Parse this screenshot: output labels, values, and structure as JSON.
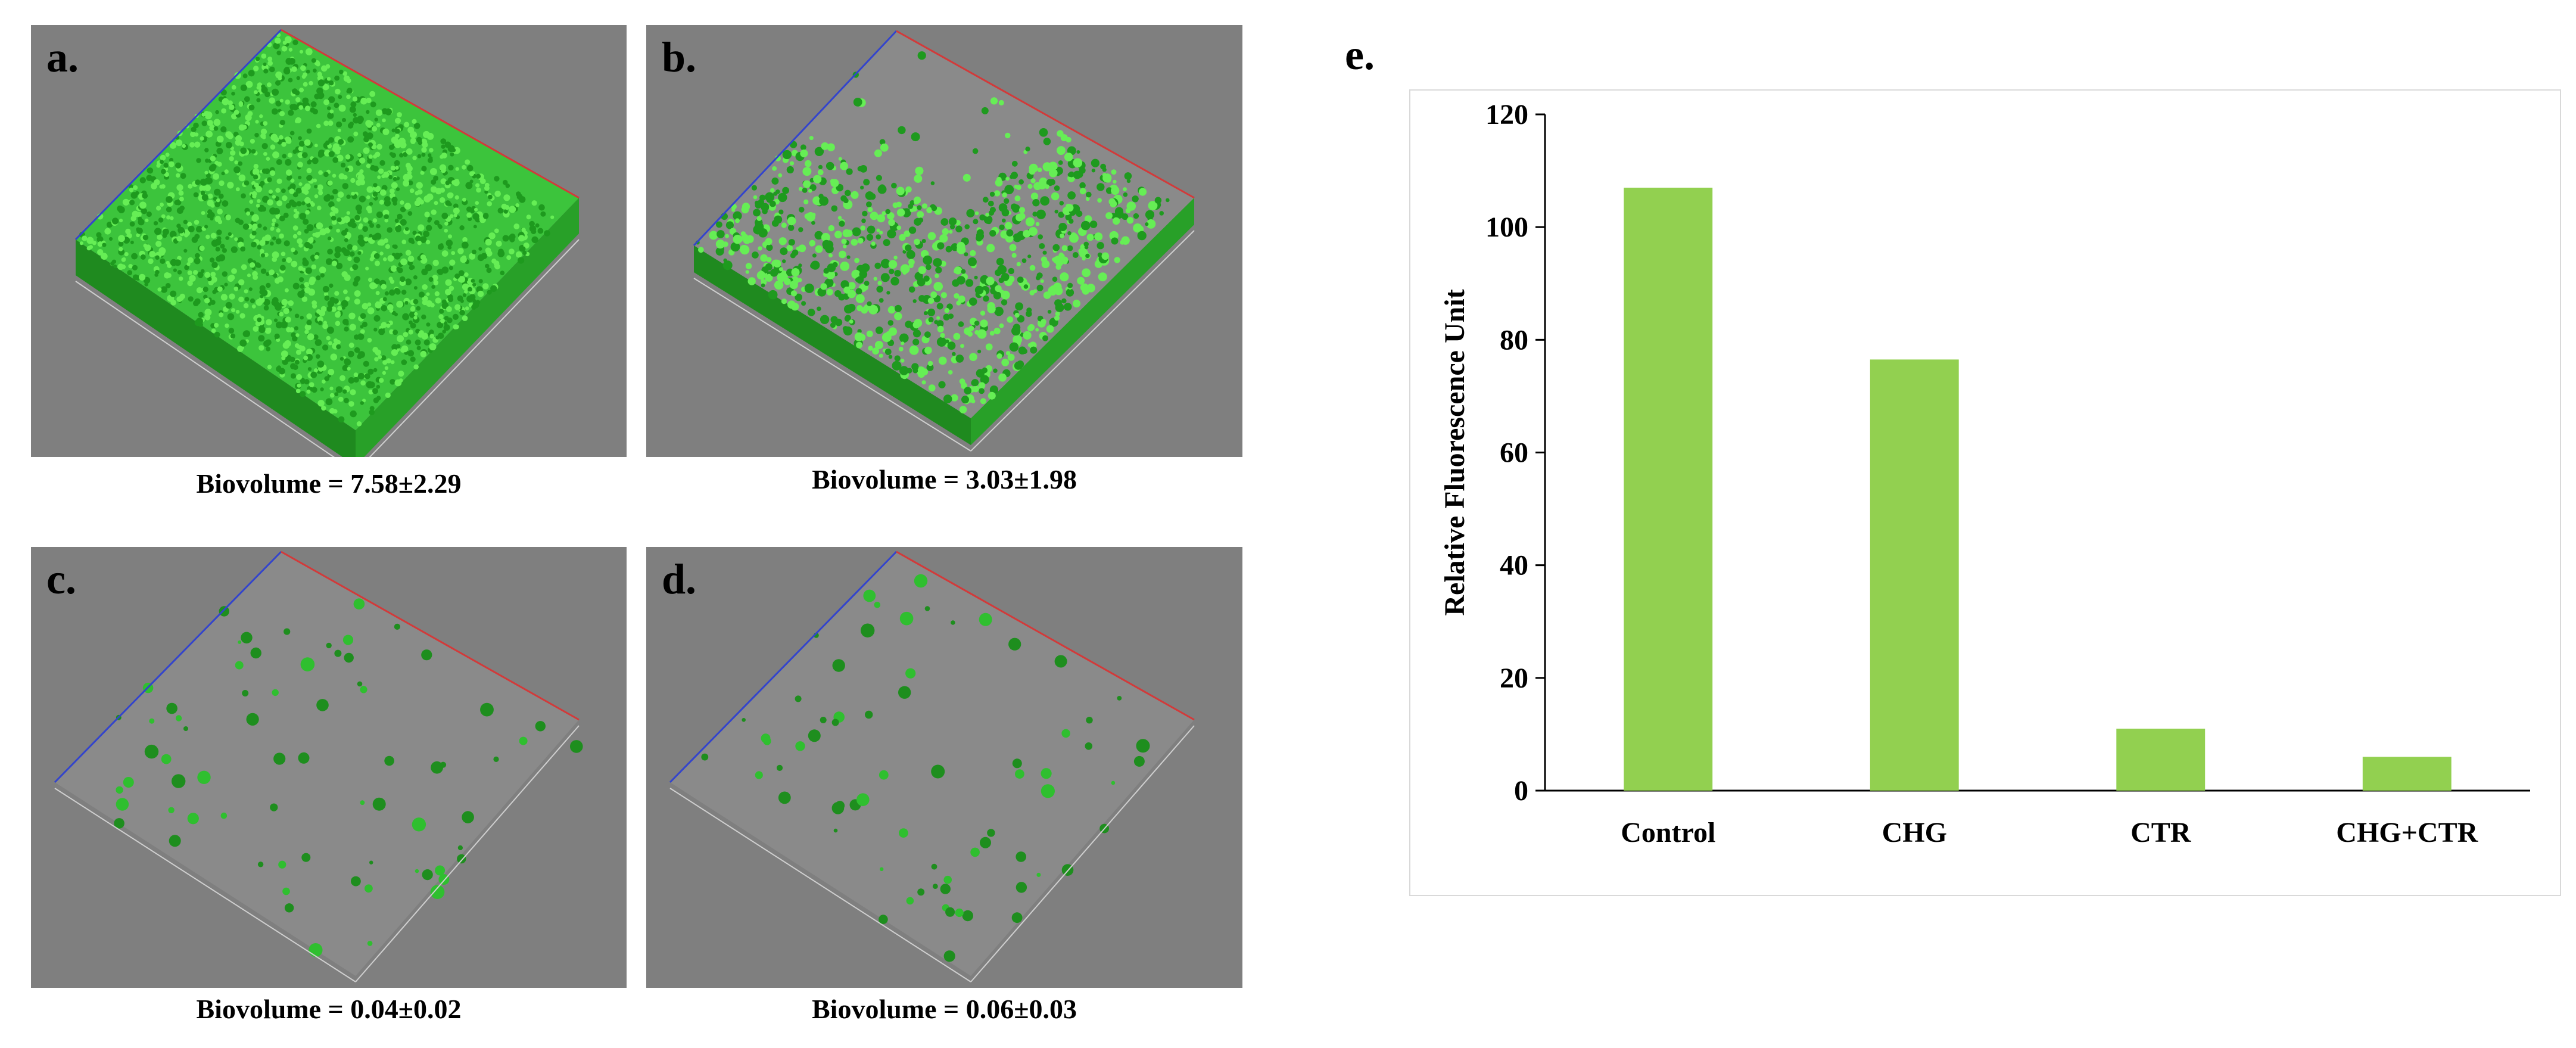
{
  "figure": {
    "panels": [
      {
        "letter": "a.",
        "caption": "Biovolume = 7.58±2.29",
        "coverage": "full"
      },
      {
        "letter": "b.",
        "caption": "Biovolume = 3.03±1.98",
        "coverage": "partial"
      },
      {
        "letter": "c.",
        "caption": "Biovolume = 0.04±0.02",
        "coverage": "sparse"
      },
      {
        "letter": "d.",
        "caption": "Biovolume = 0.06±0.03",
        "coverage": "sparse"
      }
    ],
    "chart_letter": "e."
  },
  "colors": {
    "panel_bg": "#7f7f7f",
    "biofilm_green": "#3cc43c",
    "axis_blue": "#3344cc",
    "axis_red": "#d23a3a",
    "bar_fill": "#92d050"
  },
  "chart_data": {
    "type": "bar",
    "categories": [
      "Control",
      "CHG",
      "CTR",
      "CHG+CTR"
    ],
    "values": [
      107,
      76.5,
      11,
      6
    ],
    "ylabel": "Relative Fluorescence Unit",
    "xlabel": "",
    "ylim": [
      0,
      120
    ],
    "yticks": [
      0,
      20,
      40,
      60,
      80,
      100,
      120
    ],
    "grid": false,
    "legend": "none"
  }
}
